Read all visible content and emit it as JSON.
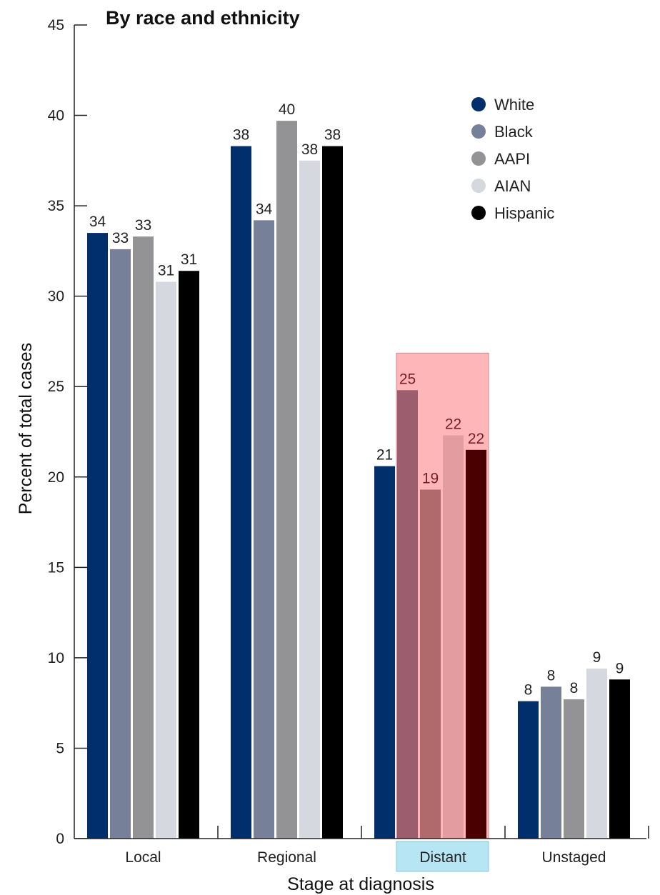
{
  "chart_data": {
    "type": "bar",
    "title": "By race and ethnicity",
    "xlabel": "Stage at diagnosis",
    "ylabel": "Percent of total cases",
    "ylim": [
      0,
      45
    ],
    "yticks": [
      0,
      5,
      10,
      15,
      20,
      25,
      30,
      35,
      40,
      45
    ],
    "categories": [
      "Local",
      "Regional",
      "Distant",
      "Unstaged"
    ],
    "highlighted_category": "Distant",
    "legend_position": "top-right",
    "grid": false,
    "series": [
      {
        "name": "White",
        "color": "#002f6c",
        "highlight_color": "#002f6c",
        "values": [
          33.5,
          38.3,
          20.6,
          7.6
        ],
        "labels": [
          "34",
          "38",
          "21",
          "8"
        ]
      },
      {
        "name": "Black",
        "color": "#768099",
        "highlight_color": "#9c5e6e",
        "values": [
          32.6,
          34.2,
          24.8,
          8.4
        ],
        "labels": [
          "33",
          "34",
          "25",
          "8"
        ]
      },
      {
        "name": "AAPI",
        "color": "#939396",
        "highlight_color": "#b06a6b",
        "values": [
          33.3,
          39.7,
          19.3,
          7.7
        ],
        "labels": [
          "33",
          "40",
          "19",
          "8"
        ]
      },
      {
        "name": "AIAN",
        "color": "#d5d8df",
        "highlight_color": "#e39c9f",
        "values": [
          30.8,
          37.5,
          22.3,
          9.4
        ],
        "labels": [
          "31",
          "38",
          "22",
          "9"
        ]
      },
      {
        "name": "Hispanic",
        "color": "#000000",
        "highlight_color": "#4a0000",
        "values": [
          31.4,
          38.3,
          21.5,
          8.8
        ],
        "labels": [
          "31",
          "38",
          "22",
          "9"
        ]
      }
    ],
    "highlight_colors": {
      "box_fill": "#ffb6b9",
      "label_box_fill": "#b6e6f4"
    }
  }
}
